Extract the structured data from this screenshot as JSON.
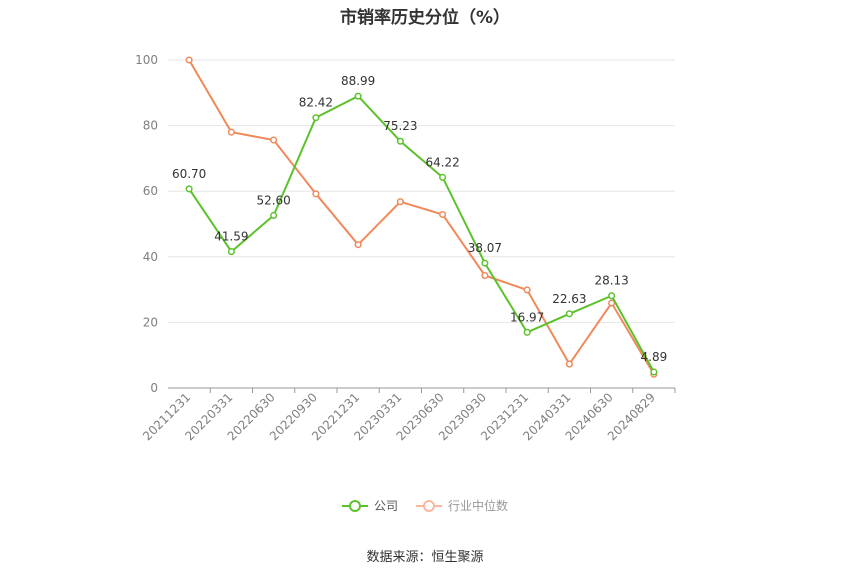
{
  "chart_data": {
    "type": "line",
    "title": "市销率历史分位（%）",
    "categories": [
      "20211231",
      "20220331",
      "20220630",
      "20220930",
      "20221231",
      "20230331",
      "20230630",
      "20230930",
      "20231231",
      "20240331",
      "20240630",
      "20240829"
    ],
    "series": [
      {
        "name": "公司",
        "color": "#5cc22c",
        "values": [
          60.7,
          41.59,
          52.6,
          82.42,
          88.99,
          75.23,
          64.22,
          38.07,
          16.97,
          22.63,
          28.13,
          4.89
        ],
        "labels": [
          "60.70",
          "41.59",
          "52.60",
          "82.42",
          "88.99",
          "75.23",
          "64.22",
          "38.07",
          "16.97",
          "22.63",
          "28.13",
          "4.89"
        ]
      },
      {
        "name": "行业中位数",
        "color": "#f0895a",
        "values": [
          100.0,
          78.0,
          75.6,
          59.2,
          43.7,
          56.8,
          52.9,
          34.3,
          29.9,
          7.3,
          25.9,
          4.2
        ]
      }
    ],
    "y_ticks": [
      "0",
      "20",
      "40",
      "60",
      "80",
      "100"
    ],
    "ylim": [
      0,
      100
    ],
    "grid": true,
    "legend_position": "bottom-center"
  },
  "source": "数据来源：恒生聚源"
}
